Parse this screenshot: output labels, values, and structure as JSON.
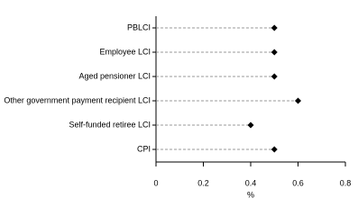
{
  "chart_data": {
    "type": "dot",
    "categories": [
      "PBLCI",
      "Employee LCI",
      "Aged pensioner LCI",
      "Other government payment recipient LCI",
      "Self-funded retiree LCI",
      "CPI"
    ],
    "values": [
      0.5,
      0.5,
      0.5,
      0.6,
      0.4,
      0.5
    ],
    "color": "#000000",
    "xlabel": "%",
    "xlim": [
      0,
      0.8
    ],
    "xticks": [
      0,
      0.2,
      0.4,
      0.6,
      0.8
    ]
  }
}
